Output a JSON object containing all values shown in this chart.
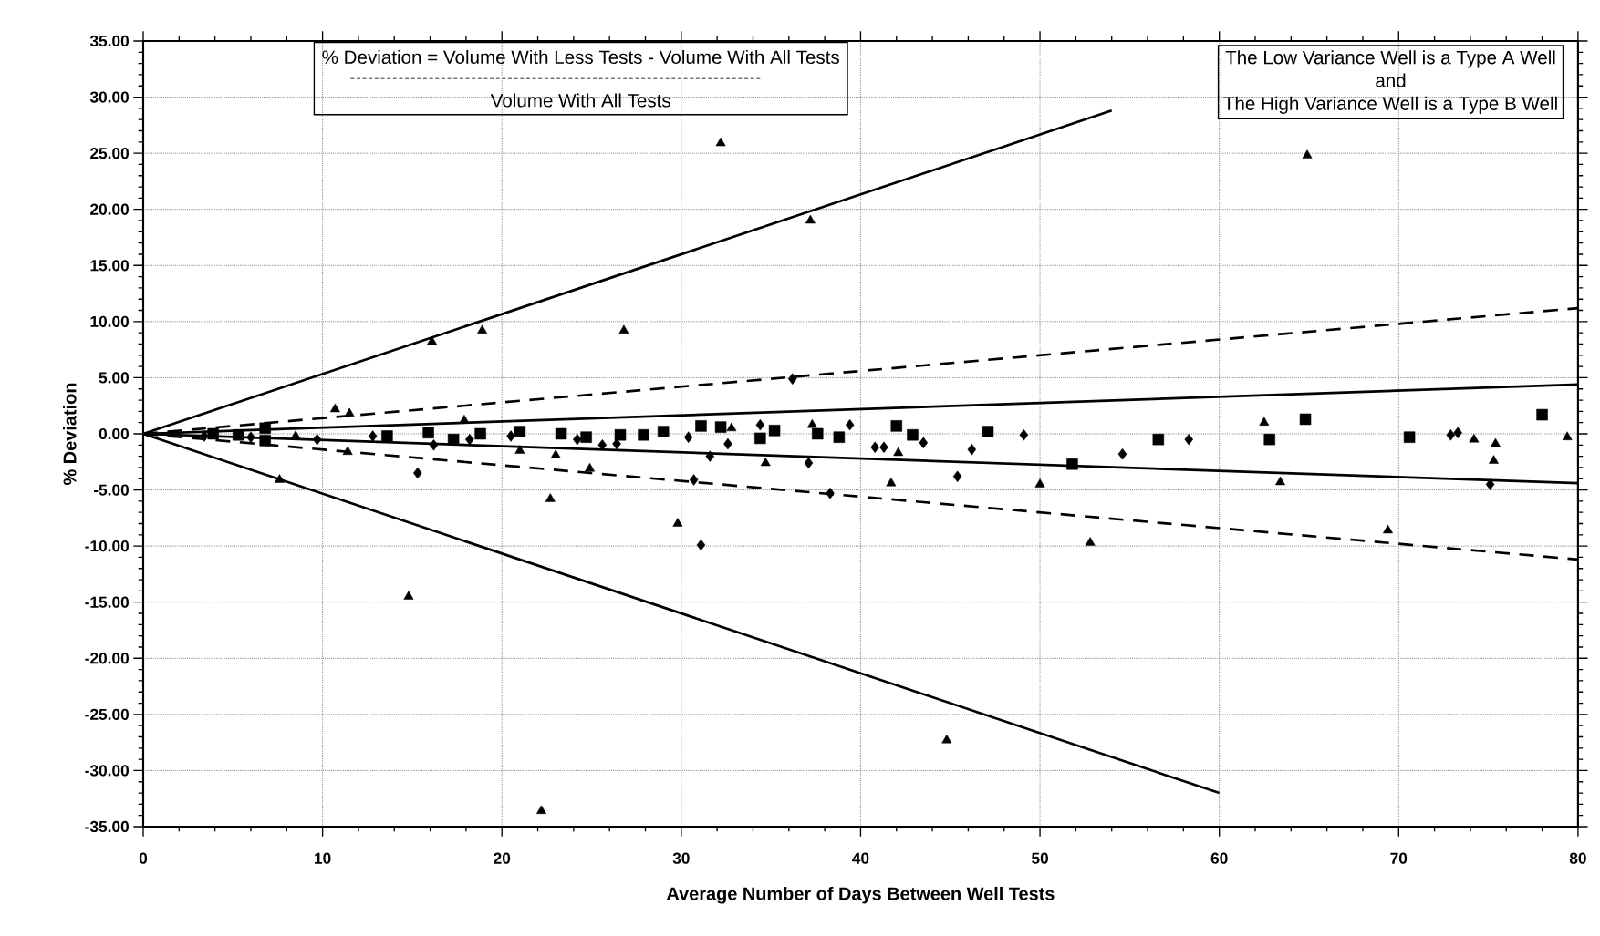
{
  "chart_data": {
    "type": "scatter",
    "xlabel": "Average Number of Days Between Well Tests",
    "ylabel": "% Deviation",
    "annotations": [
      "% Deviation = Volume With Less Tests - Volume With All Tests",
      "Volume With All Tests",
      "The Low Variance Well is a Type A Well",
      "and",
      "The High Variance Well is a Type B Well"
    ],
    "xlim": [
      0,
      80
    ],
    "ylim": [
      -35,
      35
    ],
    "xticks": [
      0,
      10,
      20,
      30,
      40,
      50,
      60,
      70,
      80
    ],
    "yticks": [
      {
        "value": 35,
        "label": "35.00"
      },
      {
        "value": 30,
        "label": "30.00"
      },
      {
        "value": 25,
        "label": "25.00"
      },
      {
        "value": 20,
        "label": "20.00"
      },
      {
        "value": 15,
        "label": "15.00"
      },
      {
        "value": 10,
        "label": "10.00"
      },
      {
        "value": 5,
        "label": "5.00"
      },
      {
        "value": 0,
        "label": "0.00"
      },
      {
        "value": -5,
        "label": "-5.00"
      },
      {
        "value": -10,
        "label": "-10.00"
      },
      {
        "value": -15,
        "label": "-15.00"
      },
      {
        "value": -20,
        "label": "-20.00"
      },
      {
        "value": -25,
        "label": "-25.00"
      },
      {
        "value": -30,
        "label": "-30.00"
      },
      {
        "value": -35,
        "label": "-35.00"
      }
    ],
    "grid": true,
    "series": [
      {
        "type": "line",
        "color": "#000000",
        "line_style": "solid",
        "marker": "none",
        "x": [
          0,
          54
        ],
        "values": [
          0,
          28.8
        ]
      },
      {
        "type": "line",
        "color": "#000000",
        "line_style": "solid",
        "marker": "none",
        "x": [
          0,
          60
        ],
        "values": [
          0,
          -32
        ]
      },
      {
        "type": "line",
        "color": "#000000",
        "line_style": "dashed",
        "marker": "none",
        "x": [
          0,
          80
        ],
        "values": [
          0,
          11.2
        ]
      },
      {
        "type": "line",
        "color": "#000000",
        "line_style": "dashed",
        "marker": "none",
        "x": [
          0,
          80
        ],
        "values": [
          0,
          -11.2
        ]
      },
      {
        "type": "line",
        "color": "#000000",
        "line_style": "solid",
        "marker": "none",
        "x": [
          0,
          80
        ],
        "values": [
          0,
          4.4
        ]
      },
      {
        "type": "line",
        "color": "#000000",
        "line_style": "solid",
        "marker": "none",
        "x": [
          0,
          80
        ],
        "values": [
          0,
          -4.4
        ]
      },
      {
        "color": "#000000",
        "marker": "diamond",
        "x": [
          3.4,
          6.0,
          9.7,
          12.8,
          15.3,
          16.2,
          18.2,
          20.5,
          24.2,
          25.6,
          26.4,
          30.4,
          30.7,
          31.1,
          31.6,
          32.6,
          34.4,
          36.2,
          37.1,
          38.3,
          39.4,
          40.8,
          41.3,
          43.5,
          45.4,
          46.2,
          49.1,
          54.6,
          58.3,
          72.9,
          73.3,
          75.1
        ],
        "values": [
          -0.2,
          -0.3,
          -0.5,
          -0.2,
          -3.5,
          -1.0,
          -0.5,
          -0.2,
          -0.5,
          -1.0,
          -0.9,
          -0.3,
          -4.1,
          -9.9,
          -2.0,
          -0.9,
          0.8,
          4.9,
          -2.6,
          -5.3,
          0.8,
          -1.2,
          -1.2,
          -0.8,
          -3.8,
          -1.4,
          -0.1,
          -1.8,
          -0.5,
          -0.1,
          0.1,
          -4.5
        ]
      },
      {
        "color": "#000000",
        "marker": "square",
        "x": [
          3.9,
          5.3,
          6.8,
          6.8,
          13.6,
          15.9,
          17.3,
          18.8,
          21.0,
          23.3,
          24.7,
          26.6,
          27.9,
          29.0,
          31.1,
          32.2,
          34.4,
          35.2,
          37.6,
          38.8,
          42.0,
          42.9,
          47.1,
          51.8,
          56.6,
          62.8,
          64.8,
          70.6,
          78.0
        ],
        "values": [
          0.0,
          -0.1,
          0.5,
          -0.6,
          -0.2,
          0.1,
          -0.5,
          0.0,
          0.2,
          0.0,
          -0.3,
          -0.1,
          -0.1,
          0.2,
          0.7,
          0.6,
          -0.4,
          0.3,
          0.0,
          -0.3,
          0.7,
          -0.1,
          0.2,
          -2.7,
          -0.5,
          -0.5,
          1.3,
          -0.3,
          1.7
        ]
      },
      {
        "color": "#000000",
        "marker": "triangle",
        "x": [
          7.6,
          8.5,
          10.7,
          11.4,
          11.5,
          14.8,
          16.1,
          17.9,
          18.9,
          21.0,
          22.2,
          22.7,
          23.0,
          24.9,
          26.8,
          29.8,
          32.2,
          32.8,
          34.7,
          37.2,
          37.3,
          41.7,
          42.1,
          44.8,
          50.0,
          52.8,
          62.5,
          63.4,
          64.9,
          69.4,
          74.2,
          75.3,
          75.4,
          79.4
        ],
        "values": [
          -4.1,
          -0.2,
          2.2,
          -1.6,
          1.8,
          -14.5,
          8.2,
          1.2,
          9.2,
          -1.5,
          -33.6,
          -5.8,
          -1.9,
          -3.1,
          9.2,
          -8.0,
          25.9,
          0.5,
          -2.6,
          19.0,
          0.8,
          -4.4,
          -1.7,
          -27.3,
          -4.5,
          -9.7,
          1.0,
          -4.3,
          24.8,
          -8.6,
          -0.5,
          -2.4,
          -0.9,
          -0.3
        ]
      }
    ]
  }
}
